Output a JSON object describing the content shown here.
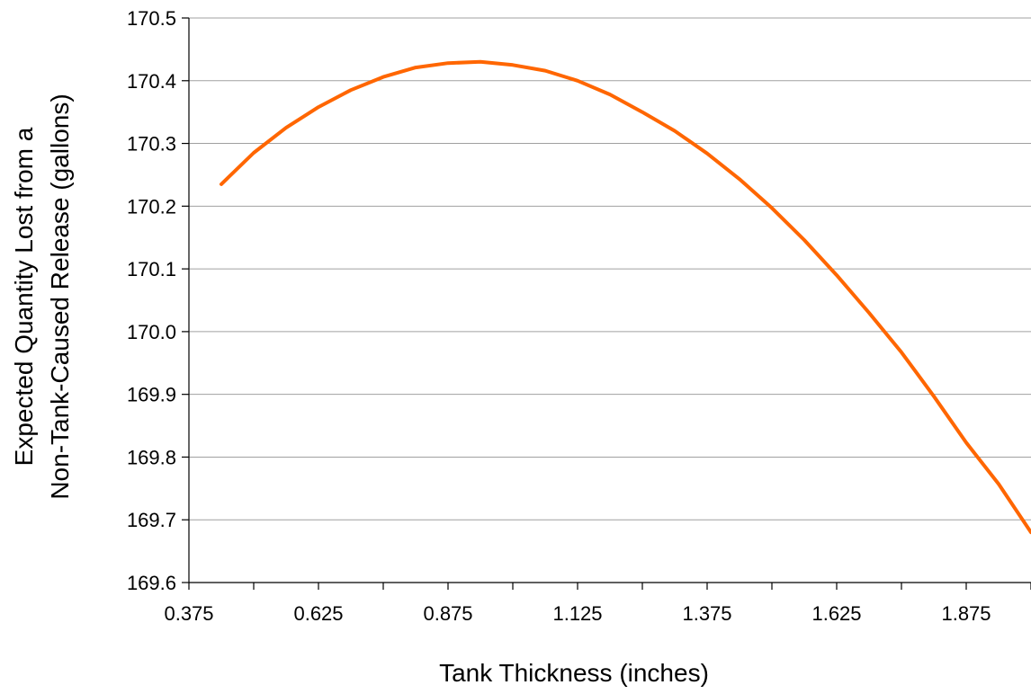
{
  "chart_data": {
    "type": "line",
    "title": "",
    "xlabel": "Tank Thickness (inches)",
    "ylabel_lines": [
      "Expected Quantity Lost from a",
      "Non-Tank-Caused Release (gallons)"
    ],
    "xlim": [
      0.375,
      2.0
    ],
    "ylim": [
      169.6,
      170.5
    ],
    "x_ticks": [
      "0.375",
      "0.625",
      "0.875",
      "1.125",
      "1.375",
      "1.625",
      "1.875"
    ],
    "y_ticks": [
      "169.6",
      "169.7",
      "169.8",
      "169.9",
      "170.0",
      "170.1",
      "170.2",
      "170.3",
      "170.4",
      "170.5"
    ],
    "grid": "horizontal",
    "legend": "none",
    "series": [
      {
        "color": "#ff6600",
        "x": [
          0.4375,
          0.5,
          0.5625,
          0.625,
          0.6875,
          0.75,
          0.8125,
          0.875,
          0.9375,
          1.0,
          1.0625,
          1.125,
          1.1875,
          1.25,
          1.3125,
          1.375,
          1.4375,
          1.5,
          1.5625,
          1.625,
          1.6875,
          1.75,
          1.8125,
          1.875,
          1.9375,
          2.0
        ],
        "y": [
          170.235,
          170.285,
          170.325,
          170.358,
          170.385,
          170.406,
          170.421,
          170.428,
          170.43,
          170.425,
          170.416,
          170.4,
          170.378,
          170.35,
          170.32,
          170.284,
          170.243,
          170.197,
          170.146,
          170.09,
          170.03,
          169.967,
          169.897,
          169.823,
          169.757,
          169.68
        ]
      }
    ]
  }
}
